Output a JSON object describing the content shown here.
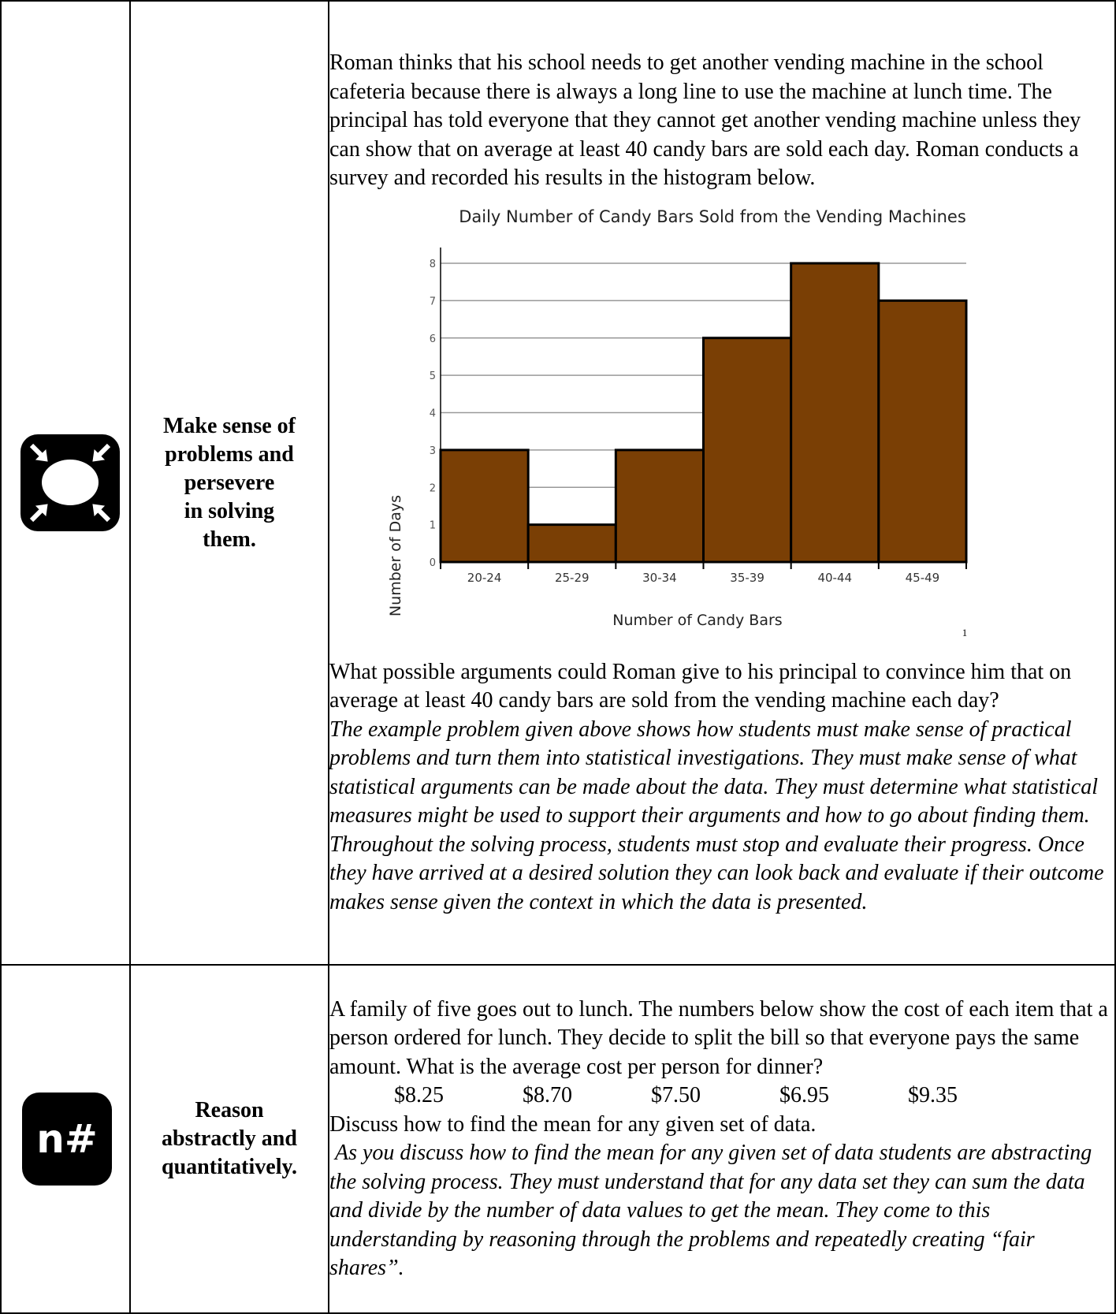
{
  "rows": [
    {
      "icon": "perseverance-icon",
      "label_lines": [
        "Make sense of",
        "problems and",
        "persevere",
        "in solving",
        "them."
      ],
      "intro": "Roman thinks that his school needs to get another vending machine in the school cafeteria because there is always a long line to use the machine at lunch time. The principal has told everyone that they cannot get another vending machine unless they can show that on average at least 40 candy bars are sold each day. Roman conducts a survey and recorded his results in the histogram below.",
      "footnote_mark": "1",
      "question": "What possible arguments could Roman give to his principal to convince him that on average at least 40 candy bars are sold from the vending machine each day?",
      "commentary": "The example problem given above shows how students must make sense of practical problems and turn them into statistical investigations. They must make sense of what statistical arguments can be made about the data. They must determine what statistical measures might be used to support their arguments and how to go about finding them. Throughout the solving process, students must stop and evaluate their progress. Once they have arrived at a desired solution they can look back and evaluate if their outcome makes sense given the context in which the data is presented."
    },
    {
      "icon": "abstract-reasoning-icon",
      "icon_text": "n#",
      "label_lines": [
        "Reason",
        "abstractly and",
        "quantitatively."
      ],
      "intro": "A family of five goes out to lunch. The numbers below show the cost of each item that a person ordered for lunch. They decide to split the bill so that everyone pays the same amount. What is the average cost per person for dinner?",
      "prices": [
        "$8.25",
        "$8.70",
        "$7.50",
        "$6.95",
        "$9.35"
      ],
      "question": "Discuss how to find the mean for any given set of data.",
      "commentary": " As you discuss how to find the mean for any given set of data students are abstracting the solving process. They must understand that for any data set they can sum the data and divide by the number of data values to get the mean. They come to this understanding by reasoning through the problems and repeatedly creating “fair shares”."
    }
  ],
  "chart_data": {
    "type": "bar",
    "title": "Daily Number of Candy Bars Sold from the Vending Machines",
    "xlabel": "Number of Candy Bars",
    "ylabel": "Number of Days",
    "categories": [
      "20-24",
      "25-29",
      "30-34",
      "35-39",
      "40-44",
      "45-49"
    ],
    "values": [
      3,
      1,
      3,
      6,
      8,
      7
    ],
    "ylim": [
      0,
      8
    ],
    "yticks": [
      0,
      1,
      2,
      3,
      4,
      5,
      6,
      7,
      8
    ],
    "grid": true,
    "bar_color": "#7a3f05",
    "bar_edge_color": "#000000",
    "grid_color": "#999999"
  }
}
